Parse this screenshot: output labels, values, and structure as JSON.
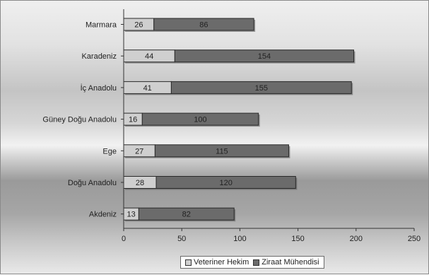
{
  "chart_data": {
    "type": "bar",
    "orientation": "horizontal",
    "stacked": true,
    "categories": [
      "Marmara",
      "Karadeniz",
      "İç Anadolu",
      "Güney Doğu Anadolu",
      "Ege",
      "Doğu Anadolu",
      "Akdeniz"
    ],
    "series": [
      {
        "name": "Veteriner Hekim",
        "values": [
          26,
          44,
          41,
          16,
          27,
          28,
          13
        ],
        "color": "#cfcfcf"
      },
      {
        "name": "Ziraat Mühendisi",
        "values": [
          86,
          154,
          155,
          100,
          115,
          120,
          82
        ],
        "color": "#6b6b6b"
      }
    ],
    "xlim": [
      0,
      250
    ],
    "xticks": [
      0,
      50,
      100,
      150,
      200,
      250
    ],
    "title": "",
    "xlabel": "",
    "ylabel": "",
    "legend_position": "bottom"
  }
}
